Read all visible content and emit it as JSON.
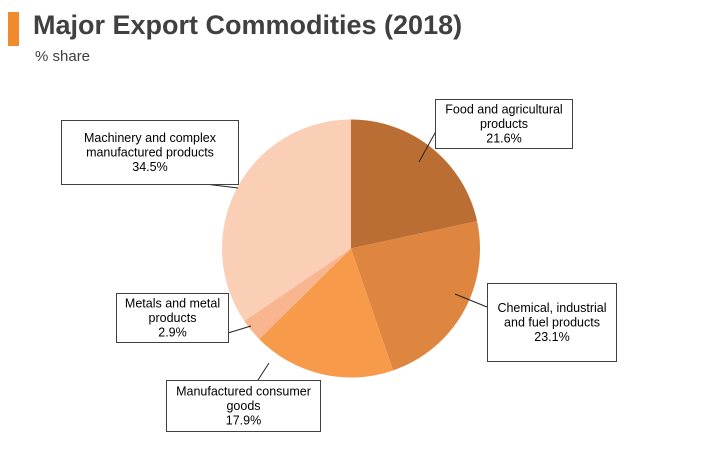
{
  "title": "Major Export Commodities (2018)",
  "subtitle": "% share",
  "chart_data": {
    "type": "pie",
    "title": "Major Export Commodities (2018)",
    "subtitle": "% share",
    "slices": [
      {
        "label": "Food and agricultural products",
        "value": 21.6,
        "value_label": "21.6%",
        "color": "#BA6E33"
      },
      {
        "label": "Chemical, industrial and fuel products",
        "value": 23.1,
        "value_label": "23.1%",
        "color": "#DE853F"
      },
      {
        "label": "Manufactured consumer goods",
        "value": 17.9,
        "value_label": "17.9%",
        "color": "#F79A4A"
      },
      {
        "label": "Metals and metal products",
        "value": 2.9,
        "value_label": "2.9%",
        "color": "#F8B58F"
      },
      {
        "label": "Machinery and complex manufactured products",
        "value": 34.5,
        "value_label": "34.5%",
        "color": "#FBCEB6"
      }
    ],
    "callouts": [
      {
        "lines": [
          "Food and agricultural",
          "products",
          "21.6%"
        ]
      },
      {
        "lines": [
          "Chemical, industrial",
          "and fuel products",
          "23.1%"
        ]
      },
      {
        "lines": [
          "Manufactured consumer",
          "goods",
          "17.9%"
        ]
      },
      {
        "lines": [
          "Metals and metal",
          "products",
          "2.9%"
        ]
      },
      {
        "lines": [
          "Machinery and complex",
          "manufactured products",
          "34.5%"
        ]
      }
    ]
  }
}
